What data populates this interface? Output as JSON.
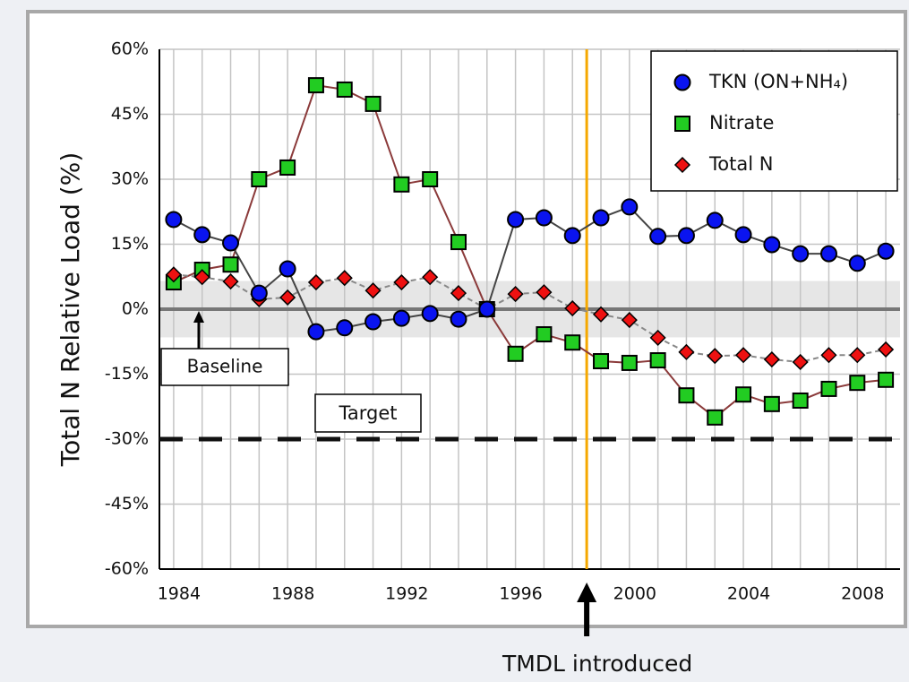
{
  "chart_data": {
    "type": "line",
    "y_label": "Total N Relative Load (%)",
    "x": [
      1984,
      1985,
      1986,
      1987,
      1988,
      1989,
      1990,
      1991,
      1992,
      1993,
      1994,
      1995,
      1996,
      1997,
      1998,
      1999,
      2000,
      2001,
      2002,
      2003,
      2004,
      2005,
      2006,
      2007,
      2008,
      2009
    ],
    "series": [
      {
        "name": "TKN (ON+NH₄)",
        "color": "#0a14f0",
        "line_color": "#444444",
        "marker": "circle",
        "values": [
          20.7,
          17.2,
          15.3,
          3.7,
          9.3,
          -5.2,
          -4.3,
          -2.9,
          -2.1,
          -1,
          -2.3,
          0,
          20.7,
          21.1,
          17,
          21.1,
          23.6,
          16.8,
          17,
          20.5,
          17.2,
          14.9,
          12.8,
          12.8,
          10.6,
          13.4
        ]
      },
      {
        "name": "Nitrate",
        "color": "#22cc22",
        "line_color": "#8b3a3a",
        "marker": "square",
        "values": [
          6.2,
          9.1,
          10.3,
          30,
          32.7,
          51.7,
          50.7,
          47.4,
          28.8,
          30,
          15.5,
          0,
          -10.3,
          -5.8,
          -7.7,
          -12,
          -12.4,
          -11.8,
          -19.9,
          -25,
          -19.7,
          -21.9,
          -21.1,
          -18.4,
          -17,
          -16.3
        ]
      },
      {
        "name": "Total N",
        "color": "#ee1111",
        "line_color": "#888888",
        "marker": "diamond",
        "dashed": true,
        "values": [
          8,
          7.4,
          6.4,
          2.3,
          2.7,
          6.2,
          7.2,
          4.3,
          6.2,
          7.4,
          3.7,
          0,
          3.5,
          3.9,
          0.2,
          -1.2,
          -2.5,
          -6.6,
          -9.9,
          -10.8,
          -10.6,
          -11.6,
          -12.2,
          -10.6,
          -10.6,
          -9.3
        ]
      }
    ],
    "xlim": [
      1983.5,
      2009.5
    ],
    "xticks": [
      1984,
      1988,
      1992,
      1996,
      2000,
      2004,
      2008
    ],
    "ylim": [
      -60,
      60
    ],
    "yticks": [
      {
        "value": -60,
        "label": "-60%"
      },
      {
        "value": -45,
        "label": "-45%"
      },
      {
        "value": -30,
        "label": "-30%"
      },
      {
        "value": -15,
        "label": "-15%"
      },
      {
        "value": 0,
        "label": "0%"
      },
      {
        "value": 15,
        "label": "15%"
      },
      {
        "value": 30,
        "label": "30%"
      },
      {
        "value": 45,
        "label": "45%"
      },
      {
        "value": 60,
        "label": "60%"
      }
    ],
    "grid": true,
    "legend": "upper right",
    "baseline_band": [
      -6.5,
      6.5
    ],
    "baseline_label": "Baseline",
    "target": -30,
    "target_label": "Target",
    "tmdl_x": 1998.5,
    "tmdl_label": "TMDL introduced"
  }
}
